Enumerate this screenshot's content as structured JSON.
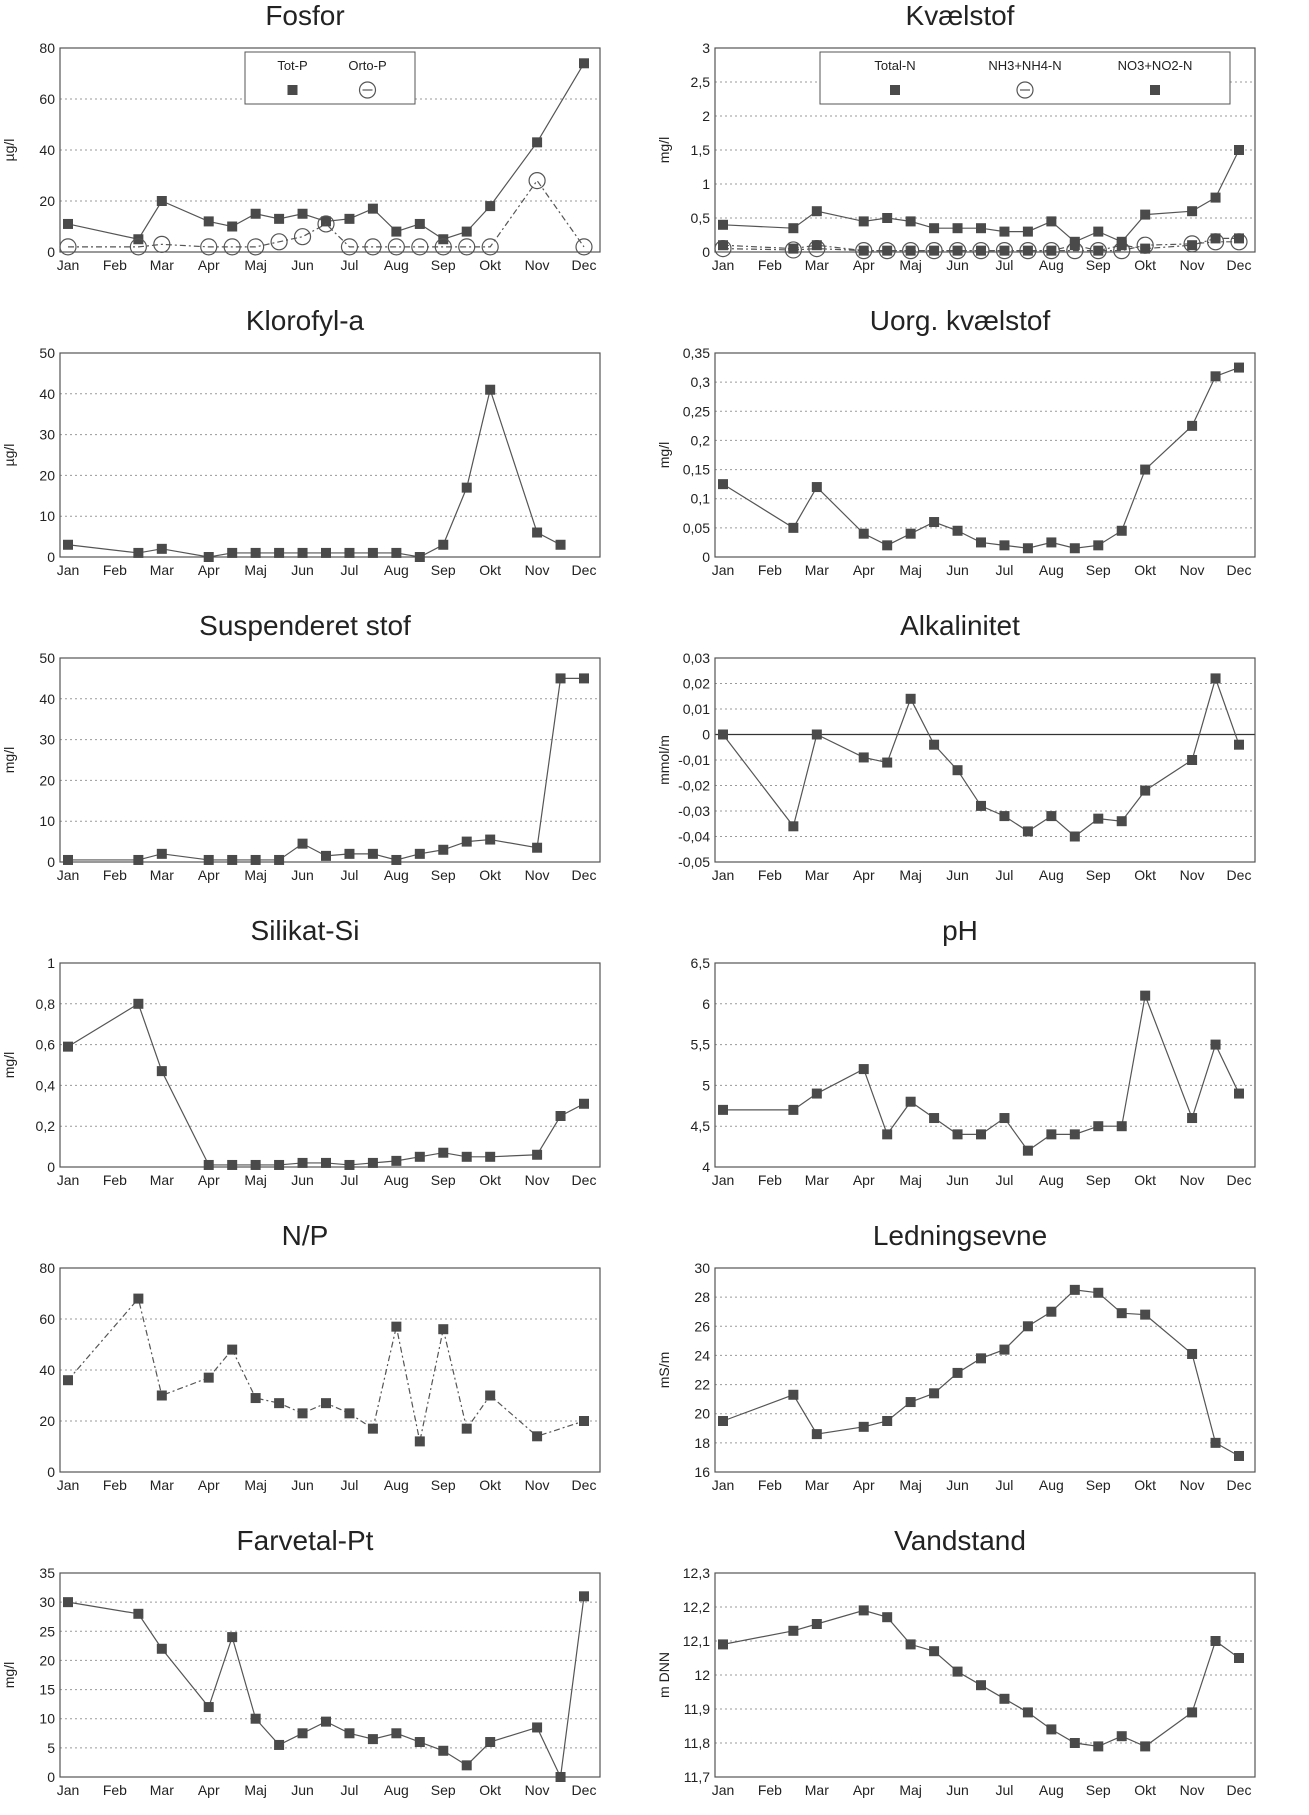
{
  "months": [
    "Jan",
    "Feb",
    "Mar",
    "Apr",
    "Maj",
    "Jun",
    "Jul",
    "Aug",
    "Sep",
    "Okt",
    "Nov",
    "Dec"
  ],
  "chart_data": [
    {
      "id": "fosfor",
      "type": "line",
      "title": "Fosfor",
      "ylabel": "µg/l",
      "ylim": [
        0,
        80
      ],
      "yticks": [
        "0",
        "20",
        "40",
        "60",
        "80"
      ],
      "grid": true,
      "legend": "top-center",
      "series": [
        {
          "name": "Tot-P",
          "marker": "square",
          "dash": false,
          "x": [
            0.0,
            1.5,
            2.0,
            3.0,
            3.5,
            4.0,
            4.5,
            5.0,
            5.5,
            6.0,
            6.5,
            7.0,
            7.5,
            8.0,
            8.5,
            9.0,
            10.0,
            11.0
          ],
          "y": [
            11,
            5,
            20,
            12,
            10,
            15,
            13,
            15,
            12,
            13,
            17,
            8,
            11,
            5,
            8,
            18,
            43,
            74
          ]
        },
        {
          "name": "Orto-P",
          "marker": "circle",
          "dash": true,
          "x": [
            0.0,
            1.5,
            2.0,
            3.0,
            3.5,
            4.0,
            4.5,
            5.0,
            5.5,
            6.0,
            6.5,
            7.0,
            7.5,
            8.0,
            8.5,
            9.0,
            10.0,
            11.0
          ],
          "y": [
            2,
            2,
            3,
            2,
            2,
            2,
            4,
            6,
            11,
            2,
            2,
            2,
            2,
            2,
            2,
            2,
            28,
            2
          ]
        }
      ]
    },
    {
      "id": "kvaelstof",
      "type": "line",
      "title": "Kvælstof",
      "ylabel": "mg/l",
      "ylim": [
        0,
        3
      ],
      "yticks": [
        "0",
        "0,5",
        "1",
        "1,5",
        "2",
        "2,5",
        "3"
      ],
      "grid": true,
      "legend": "top-center",
      "series": [
        {
          "name": "Total-N",
          "marker": "square",
          "dash": false,
          "x": [
            0.0,
            1.5,
            2.0,
            3.0,
            3.5,
            4.0,
            4.5,
            5.0,
            5.5,
            6.0,
            6.5,
            7.0,
            7.5,
            8.0,
            8.5,
            9.0,
            10.0,
            10.5,
            11.0
          ],
          "y": [
            0.4,
            0.35,
            0.6,
            0.45,
            0.5,
            0.45,
            0.35,
            0.35,
            0.35,
            0.3,
            0.3,
            0.45,
            0.15,
            0.3,
            0.15,
            0.55,
            0.6,
            0.8,
            1.5
          ]
        },
        {
          "name": "NH3+NH4-N",
          "marker": "circle",
          "dash": true,
          "x": [
            0.0,
            1.5,
            2.0,
            3.0,
            3.5,
            4.0,
            4.5,
            5.0,
            5.5,
            6.0,
            6.5,
            7.0,
            7.5,
            8.0,
            8.5,
            9.0,
            10.0,
            10.5,
            11.0
          ],
          "y": [
            0.05,
            0.03,
            0.05,
            0.02,
            0.02,
            0.02,
            0.02,
            0.02,
            0.02,
            0.02,
            0.02,
            0.02,
            0.02,
            0.02,
            0.02,
            0.1,
            0.12,
            0.15,
            0.15
          ]
        },
        {
          "name": "NO3+NO2-N",
          "marker": "square",
          "dash": true,
          "x": [
            0.0,
            1.5,
            2.0,
            3.0,
            3.5,
            4.0,
            4.5,
            5.0,
            5.5,
            6.0,
            6.5,
            7.0,
            7.5,
            8.0,
            8.5,
            9.0,
            10.0,
            10.5,
            11.0
          ],
          "y": [
            0.1,
            0.05,
            0.1,
            0.02,
            0.02,
            0.02,
            0.02,
            0.02,
            0.02,
            0.02,
            0.02,
            0.02,
            0.1,
            0.02,
            0.1,
            0.05,
            0.1,
            0.2,
            0.2
          ]
        }
      ]
    },
    {
      "id": "klorofyl",
      "type": "line",
      "title": "Klorofyl-a",
      "ylabel": "µg/l",
      "ylim": [
        0,
        50
      ],
      "yticks": [
        "0",
        "10",
        "20",
        "30",
        "40",
        "50"
      ],
      "grid": true,
      "series": [
        {
          "marker": "square",
          "dash": false,
          "x": [
            0.0,
            1.5,
            2.0,
            3.0,
            3.5,
            4.0,
            4.5,
            5.0,
            5.5,
            6.0,
            6.5,
            7.0,
            7.5,
            8.0,
            8.5,
            9.0,
            10.0,
            10.5
          ],
          "y": [
            3,
            1,
            2,
            0,
            1,
            1,
            1,
            1,
            1,
            1,
            1,
            1,
            0,
            3,
            17,
            41,
            6,
            3
          ]
        }
      ]
    },
    {
      "id": "uorg",
      "type": "line",
      "title": "Uorg. kvælstof",
      "ylabel": "mg/l",
      "ylim": [
        0,
        0.35
      ],
      "yticks": [
        "0",
        "0,05",
        "0,1",
        "0,15",
        "0,2",
        "0,25",
        "0,3",
        "0,35"
      ],
      "grid": true,
      "series": [
        {
          "marker": "square",
          "dash": false,
          "x": [
            0.0,
            1.5,
            2.0,
            3.0,
            3.5,
            4.0,
            4.5,
            5.0,
            5.5,
            6.0,
            6.5,
            7.0,
            7.5,
            8.0,
            8.5,
            9.0,
            10.0,
            10.5,
            11.0
          ],
          "y": [
            0.125,
            0.05,
            0.12,
            0.04,
            0.02,
            0.04,
            0.06,
            0.045,
            0.025,
            0.02,
            0.015,
            0.025,
            0.015,
            0.02,
            0.045,
            0.15,
            0.225,
            0.31,
            0.325
          ]
        }
      ]
    },
    {
      "id": "suspenderet",
      "type": "line",
      "title": "Suspenderet stof",
      "ylabel": "mg/l",
      "ylim": [
        0,
        50
      ],
      "yticks": [
        "0",
        "10",
        "20",
        "30",
        "40",
        "50"
      ],
      "grid": true,
      "series": [
        {
          "marker": "square",
          "dash": false,
          "x": [
            0.0,
            1.5,
            2.0,
            3.0,
            3.5,
            4.0,
            4.5,
            5.0,
            5.5,
            6.0,
            6.5,
            7.0,
            7.5,
            8.0,
            8.5,
            9.0,
            10.0,
            10.5,
            11.0
          ],
          "y": [
            0.5,
            0.5,
            2,
            0.5,
            0.5,
            0.5,
            0.5,
            4.5,
            1.5,
            2,
            2,
            0.5,
            2,
            3,
            5,
            5.5,
            3.5,
            45,
            45
          ]
        }
      ]
    },
    {
      "id": "alkalinitet",
      "type": "line",
      "title": "Alkalinitet",
      "ylabel": "mmol/m",
      "ylim": [
        -0.05,
        0.03
      ],
      "yticks": [
        "-0,05",
        "-0,04",
        "-0,03",
        "-0,02",
        "-0,01",
        "0",
        "0,01",
        "0,02",
        "0,03"
      ],
      "grid": true,
      "zero_line": true,
      "series": [
        {
          "marker": "square",
          "dash": false,
          "x": [
            0.0,
            1.5,
            2.0,
            3.0,
            3.5,
            4.0,
            4.5,
            5.0,
            5.5,
            6.0,
            6.5,
            7.0,
            7.5,
            8.0,
            8.5,
            9.0,
            10.0,
            10.5,
            11.0
          ],
          "y": [
            0,
            -0.036,
            0,
            -0.009,
            -0.011,
            0.014,
            -0.004,
            -0.014,
            -0.028,
            -0.032,
            -0.038,
            -0.032,
            -0.04,
            -0.033,
            -0.034,
            -0.022,
            -0.01,
            0.022,
            -0.004
          ]
        }
      ]
    },
    {
      "id": "silikat",
      "type": "line",
      "title": "Silikat-Si",
      "ylabel": "mg/l",
      "ylim": [
        0,
        1
      ],
      "yticks": [
        "0",
        "0,2",
        "0,4",
        "0,6",
        "0,8",
        "1"
      ],
      "grid": true,
      "series": [
        {
          "marker": "square",
          "dash": false,
          "x": [
            0.0,
            1.5,
            2.0,
            3.0,
            3.5,
            4.0,
            4.5,
            5.0,
            5.5,
            6.0,
            6.5,
            7.0,
            7.5,
            8.0,
            8.5,
            9.0,
            10.0,
            10.5,
            11.0
          ],
          "y": [
            0.59,
            0.8,
            0.47,
            0.01,
            0.01,
            0.01,
            0.01,
            0.02,
            0.02,
            0.01,
            0.02,
            0.03,
            0.05,
            0.07,
            0.05,
            0.05,
            0.06,
            0.25,
            0.31
          ]
        }
      ]
    },
    {
      "id": "ph",
      "type": "line",
      "title": "pH",
      "ylabel": "",
      "ylim": [
        4,
        6.5
      ],
      "yticks": [
        "4",
        "4,5",
        "5",
        "5,5",
        "6",
        "6,5"
      ],
      "grid": true,
      "series": [
        {
          "marker": "square",
          "dash": false,
          "x": [
            0.0,
            1.5,
            2.0,
            3.0,
            3.5,
            4.0,
            4.5,
            5.0,
            5.5,
            6.0,
            6.5,
            7.0,
            7.5,
            8.0,
            8.5,
            9.0,
            10.0,
            10.5,
            11.0
          ],
          "y": [
            4.7,
            4.7,
            4.9,
            5.2,
            4.4,
            4.8,
            4.6,
            4.4,
            4.4,
            4.6,
            4.2,
            4.4,
            4.4,
            4.5,
            4.5,
            6.1,
            4.6,
            5.5,
            4.9
          ]
        }
      ]
    },
    {
      "id": "np",
      "type": "line",
      "title": "N/P",
      "ylabel": "",
      "ylim": [
        0,
        80
      ],
      "yticks": [
        "0",
        "20",
        "40",
        "60",
        "80"
      ],
      "grid": true,
      "series": [
        {
          "marker": "square",
          "dash": true,
          "x": [
            0.0,
            1.5,
            2.0,
            3.0,
            3.5,
            4.0,
            4.5,
            5.0,
            5.5,
            6.0,
            6.5,
            7.0,
            7.5,
            8.0,
            8.5,
            9.0,
            10.0,
            11.0
          ],
          "y": [
            36,
            68,
            30,
            37,
            48,
            29,
            27,
            23,
            27,
            23,
            17,
            57,
            12,
            56,
            17,
            30,
            14,
            20
          ]
        }
      ]
    },
    {
      "id": "ledningsevne",
      "type": "line",
      "title": "Ledningsevne",
      "ylabel": "mS/m",
      "ylim": [
        16,
        30
      ],
      "yticks": [
        "16",
        "18",
        "20",
        "22",
        "24",
        "26",
        "28",
        "30"
      ],
      "grid": true,
      "series": [
        {
          "marker": "square",
          "dash": false,
          "x": [
            0.0,
            1.5,
            2.0,
            3.0,
            3.5,
            4.0,
            4.5,
            5.0,
            5.5,
            6.0,
            6.5,
            7.0,
            7.5,
            8.0,
            8.5,
            9.0,
            10.0,
            10.5,
            11.0
          ],
          "y": [
            19.5,
            21.3,
            18.6,
            19.1,
            19.5,
            20.8,
            21.4,
            22.8,
            23.8,
            24.4,
            26,
            27,
            28.5,
            28.3,
            26.9,
            26.8,
            24.1,
            18,
            17.1
          ]
        }
      ]
    },
    {
      "id": "farvetal",
      "type": "line",
      "title": "Farvetal-Pt",
      "ylabel": "mg/l",
      "ylim": [
        0,
        35
      ],
      "yticks": [
        "0",
        "5",
        "10",
        "15",
        "20",
        "25",
        "30",
        "35"
      ],
      "grid": true,
      "series": [
        {
          "marker": "square",
          "dash": false,
          "x": [
            0.0,
            1.5,
            2.0,
            3.0,
            3.5,
            4.0,
            4.5,
            5.0,
            5.5,
            6.0,
            6.5,
            7.0,
            7.5,
            8.0,
            8.5,
            9.0,
            10.0,
            10.5,
            11.0
          ],
          "y": [
            30,
            28,
            22,
            12,
            24,
            10,
            5.5,
            7.5,
            9.5,
            7.5,
            6.5,
            7.5,
            6,
            4.5,
            2,
            6,
            8.5,
            0,
            31
          ]
        }
      ]
    },
    {
      "id": "vandstand",
      "type": "line",
      "title": "Vandstand",
      "ylabel": "m DNN",
      "ylim": [
        11.7,
        12.3
      ],
      "yticks": [
        "11,7",
        "11,8",
        "11,9",
        "12",
        "12,1",
        "12,2",
        "12,3"
      ],
      "grid": true,
      "series": [
        {
          "marker": "square",
          "dash": false,
          "x": [
            0.0,
            1.5,
            2.0,
            3.0,
            3.5,
            4.0,
            4.5,
            5.0,
            5.5,
            6.0,
            6.5,
            7.0,
            7.5,
            8.0,
            8.5,
            9.0,
            10.0,
            10.5,
            11.0
          ],
          "y": [
            12.09,
            12.13,
            12.15,
            12.19,
            12.17,
            12.09,
            12.07,
            12.01,
            11.97,
            11.93,
            11.89,
            11.84,
            11.8,
            11.79,
            11.82,
            11.79,
            11.89,
            12.1,
            12.05
          ]
        }
      ]
    }
  ]
}
